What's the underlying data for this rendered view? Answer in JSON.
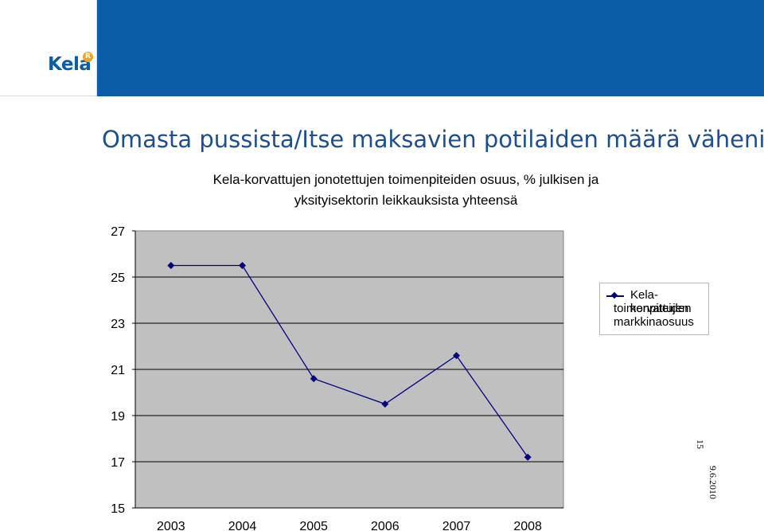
{
  "header": {
    "logo_text": "Kela",
    "logo_mark": "R",
    "band_color": "#0a5da6",
    "logo_color": "#0a5da6",
    "logo_mark_color": "#f2a51a"
  },
  "slide": {
    "title": "Omasta pussista/Itse maksavien potilaiden määrä väheni",
    "title_color": "#1d4e8f"
  },
  "footer": {
    "page_number": "15",
    "date": "9.6.2010"
  },
  "chart_data": {
    "type": "line",
    "title_lines": [
      "Kela-korvattujen jonotettujen toimenpiteiden osuus, % julkisen ja",
      "yksityisektorin leikkauksista yhteensä"
    ],
    "categories": [
      "2003",
      "2004",
      "2005",
      "2006",
      "2007",
      "2008"
    ],
    "series": [
      {
        "name": "Kela-korvattujen toimenpiteiden markkinaosuus",
        "legend_lines": [
          "Kela-korvattujen",
          "toimenpiteiden",
          "markkinaosuus"
        ],
        "values": [
          25.5,
          25.5,
          20.6,
          19.5,
          21.6,
          17.2
        ],
        "color": "#000080",
        "marker": "diamond"
      }
    ],
    "ylim": [
      15,
      27
    ],
    "yticks": [
      "15",
      "17",
      "19",
      "21",
      "23",
      "25",
      "27"
    ],
    "xlabel": "",
    "ylabel": "",
    "grid": true,
    "plot_background": "#c0c0c0",
    "legend_position": "right"
  }
}
